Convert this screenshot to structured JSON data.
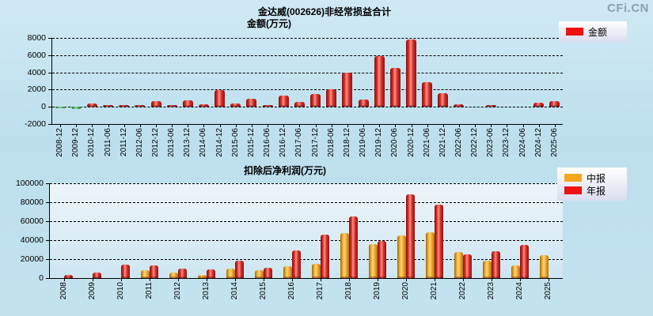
{
  "page": {
    "logo": "CFi.CN"
  },
  "chart_data": [
    {
      "type": "bar",
      "title": "金达威(002626)非经常损益合计",
      "unit_label": "金额(万元)",
      "ylim": [
        -2000,
        8000
      ],
      "yticks": [
        -2000,
        0,
        2000,
        4000,
        6000,
        8000
      ],
      "grid": true,
      "legend_position": "top-right",
      "positive_color": "#ee1111",
      "negative_color": "#33a04a",
      "categories": [
        "2008-12",
        "2009-12",
        "2010-12",
        "2011-06",
        "2011-12",
        "2012-06",
        "2012-12",
        "2013-06",
        "2013-12",
        "2014-06",
        "2014-12",
        "2015-06",
        "2015-12",
        "2016-06",
        "2016-12",
        "2017-06",
        "2017-12",
        "2018-06",
        "2018-12",
        "2019-06",
        "2019-12",
        "2020-06",
        "2020-12",
        "2021-06",
        "2021-12",
        "2022-06",
        "2022-12",
        "2023-06",
        "2023-12",
        "2024-06",
        "2024-12",
        "2025-06"
      ],
      "series": [
        {
          "name": "金额",
          "color": "#ee1111",
          "values": [
            -150,
            -250,
            400,
            220,
            220,
            220,
            630,
            200,
            760,
            250,
            1900,
            400,
            950,
            200,
            1300,
            550,
            1500,
            2000,
            3950,
            850,
            5850,
            4500,
            7850,
            2850,
            1550,
            320,
            0,
            200,
            0,
            0,
            450,
            700
          ]
        }
      ]
    },
    {
      "type": "bar",
      "title": "扣除后净利润(万元)",
      "ylim": [
        0,
        100000
      ],
      "yticks": [
        0,
        20000,
        40000,
        60000,
        80000,
        100000
      ],
      "grid": true,
      "legend_position": "top-right",
      "categories": [
        "2008",
        "2009",
        "2010",
        "2011",
        "2012",
        "2013",
        "2014",
        "2015",
        "2016",
        "2017",
        "2018",
        "2019",
        "2020",
        "2021",
        "2022",
        "2023",
        "2024",
        "2025"
      ],
      "series": [
        {
          "name": "中报",
          "color": "#f2a71f",
          "values": [
            null,
            null,
            null,
            8300,
            5800,
            3500,
            10000,
            8500,
            12800,
            15000,
            47500,
            36000,
            45000,
            48500,
            27500,
            18500,
            13500,
            24000
          ]
        },
        {
          "name": "年报",
          "color": "#ee1111",
          "values": [
            3600,
            5800,
            14000,
            13400,
            10000,
            9000,
            18500,
            11000,
            29000,
            46000,
            65000,
            39500,
            88500,
            77800,
            25000,
            28200,
            34800,
            null
          ]
        }
      ]
    }
  ]
}
